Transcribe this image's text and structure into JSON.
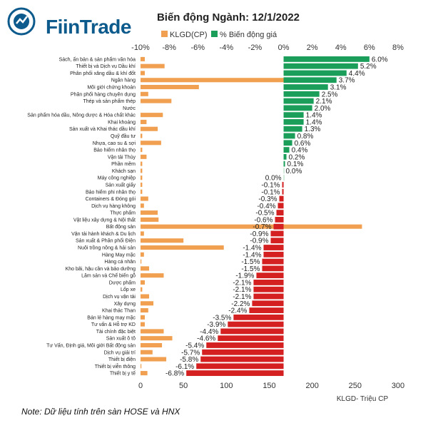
{
  "brand": {
    "name": "FiinTrade",
    "accent": "#0d5a8c"
  },
  "chart_data": {
    "type": "bar",
    "title": "Biến động Ngành: 12/1/2022",
    "note": "Note: Dữ liệu tính trên sàn HOSE và HNX",
    "legend": {
      "volume": "KLGD(CP)",
      "price": "% Biến động giá",
      "placement": "top"
    },
    "bottom_axis_label": "KLGD- Triệu CP",
    "top_axis_ticks": [
      "-10%",
      "-8%",
      "-6%",
      "-4%",
      "-2%",
      "0%",
      "2%",
      "4%",
      "6%",
      "8%"
    ],
    "top_axis_range": [
      -10,
      8
    ],
    "bottom_axis_ticks": [
      "0",
      "50",
      "100",
      "150",
      "200",
      "250",
      "300"
    ],
    "bottom_axis_range": [
      0,
      300
    ],
    "colors": {
      "volume": "#f0a050",
      "price_up": "#1a9e5a",
      "price_down": "#d42020",
      "price_zero": "#a8d8b8"
    },
    "categories": [
      "Sách, ấn bản & sản phẩm văn hóa",
      "Thiết bị và Dịch vụ Dầu khí",
      "Phân phối xăng dầu & khí đốt",
      "Ngân hàng",
      "Môi giới chứng khoán",
      "Phân phối hàng chuyên dụng",
      "Thép và sản phẩm thép",
      "Nước",
      "Sản phẩm hóa dầu, Nông dược & Hóa chất khác",
      "Khai khoáng",
      "Sản xuất và Khai thác dầu khí",
      "Quỹ đầu tư",
      "Nhựa, cao su & sợi",
      "Bảo hiểm nhân thọ",
      "Vận tải Thủy",
      "Phần mềm",
      "Khách sạn",
      "Máy công nghiệp",
      "Sản xuất giấy",
      "Bảo hiểm phi nhân thọ",
      "Containers & Đóng gói",
      "Dịch vụ hàng không",
      "Thực phẩm",
      "Vật liệu xây dựng & Nội thất",
      "Bất động sản",
      "Vận tải hành khách & Du lịch",
      "Sản xuất & Phân phối Điện",
      "Nuôi trồng nông & hải sản",
      "Hàng May mặc",
      "Hàng cá nhân",
      "Kho bãi, hậu cần và bảo dưỡng",
      "Lâm sản và Chế biến gỗ",
      "Dược phẩm",
      "Lốp xe",
      "Dịch vụ vận tải",
      "Xây dựng",
      "Khai thác Than",
      "Bán lẻ hàng may mặc",
      "Tư vấn & Hỗ trợ KD",
      "Tài chính đặc biệt",
      "Sản xuất ô tô",
      "Tư Vấn, Định giá, Môi giới Bất động sản",
      "Dịch vụ giải trí",
      "Thiết bị điện",
      "Thiết bị viễn thông",
      "Thiết bị y tế"
    ],
    "price_change": [
      6.0,
      5.2,
      4.4,
      3.7,
      3.1,
      2.5,
      2.1,
      2.0,
      1.4,
      1.4,
      1.3,
      0.8,
      0.6,
      0.4,
      0.2,
      0.1,
      0.0,
      0.0,
      -0.1,
      -0.1,
      -0.3,
      -0.4,
      -0.5,
      -0.6,
      -0.7,
      -0.9,
      -0.9,
      -1.4,
      -1.4,
      -1.5,
      -1.5,
      -1.9,
      -2.1,
      -2.1,
      -2.1,
      -2.2,
      -2.4,
      -3.5,
      -3.9,
      -4.4,
      -4.6,
      -5.4,
      -5.7,
      -5.8,
      -6.1,
      -6.8
    ],
    "price_labels": [
      "6.0%",
      "5.2%",
      "4.4%",
      "3.7%",
      "3.1%",
      "2.5%",
      "2.1%",
      "2.0%",
      "1.4%",
      "1.4%",
      "1.3%",
      "0.8%",
      "0.6%",
      "0.4%",
      "0.2%",
      "0.1%",
      "0.0%",
      "0.0%",
      "-0.1%",
      "-0.1%",
      "-0.3%",
      "-0.4%",
      "-0.5%",
      "-0.6%",
      "-0.7%",
      "-0.9%",
      "-0.9%",
      "-1.4%",
      "-1.4%",
      "-1.5%",
      "-1.5%",
      "-1.9%",
      "-2.1%",
      "-2.1%",
      "-2.1%",
      "-2.2%",
      "-2.4%",
      "-3.5%",
      "-3.9%",
      "-4.4%",
      "-4.6%",
      "-5.4%",
      "-5.7%",
      "-5.8%",
      "-6.1%",
      "-6.8%"
    ],
    "volume": [
      5,
      28,
      5,
      170,
      68,
      9,
      36,
      0,
      26,
      7,
      20,
      2,
      24,
      2,
      7,
      2,
      2,
      2,
      2,
      2,
      9,
      4,
      20,
      21,
      258,
      4,
      50,
      97,
      4,
      1,
      10,
      27,
      5,
      2,
      10,
      15,
      9,
      5,
      5,
      27,
      37,
      25,
      14,
      30,
      1,
      8
    ]
  }
}
